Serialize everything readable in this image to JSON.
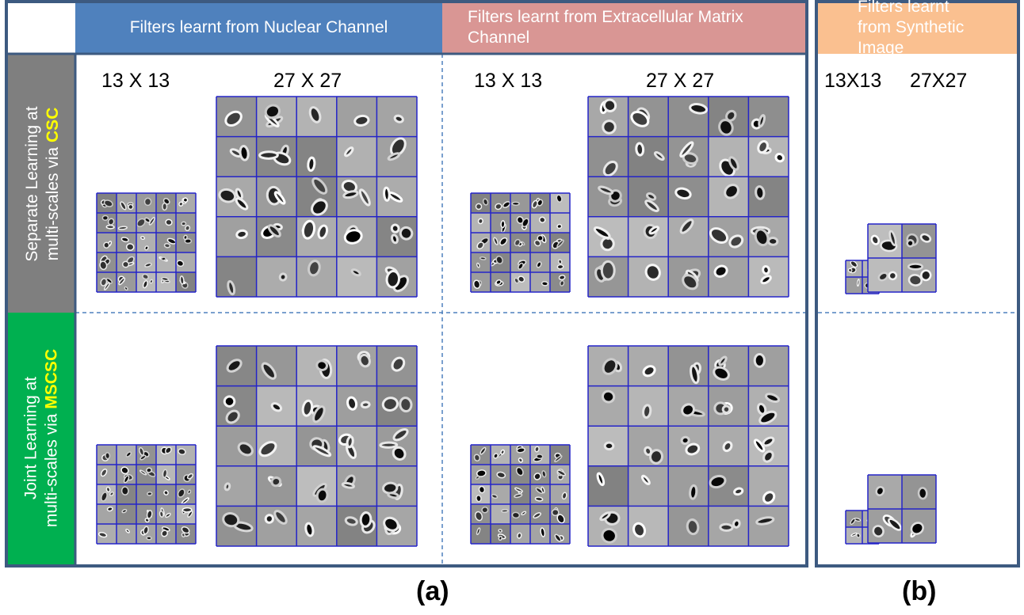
{
  "columns": [
    {
      "title": "Filters learnt from Nuclear Channel"
    },
    {
      "title": "Filters learnt from Extracellular Matrix Channel"
    },
    {
      "title": "Filters learnt from Synthetic Image"
    }
  ],
  "rows": [
    {
      "line1": "Separate Learning at",
      "line2": "multi-scales via",
      "method": "CSC"
    },
    {
      "line1": "Joint Learning at",
      "line2": "multi-scales via",
      "method": "MSCSC"
    }
  ],
  "scale_labels": [
    "13 X 13",
    "27 X 27",
    "13 X 13",
    "27 X 27",
    "13X13",
    "27X27"
  ],
  "panels": [
    "(a)",
    "(b)"
  ]
}
